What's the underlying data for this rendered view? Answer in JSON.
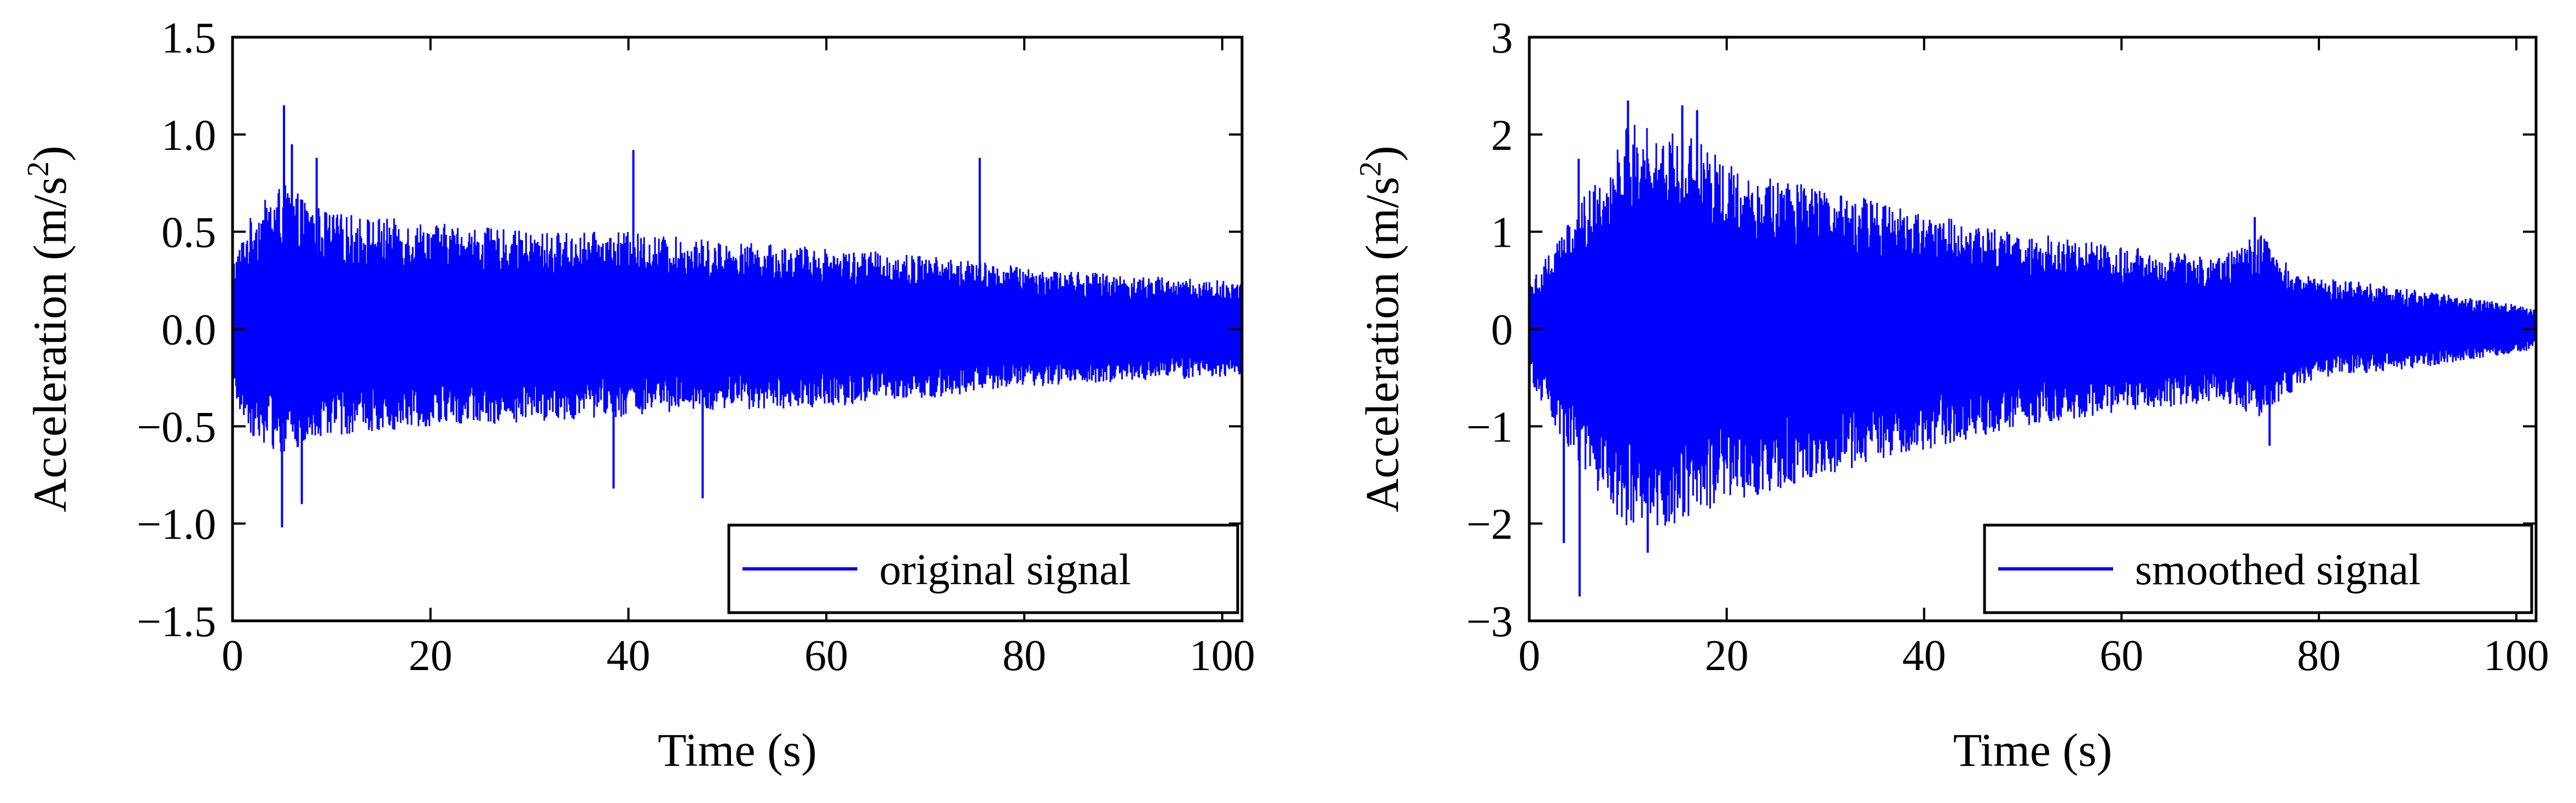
{
  "chart_data": [
    {
      "type": "line",
      "title": "",
      "xlabel": "Time (s)",
      "ylabel": "Acceleration (m/s2)",
      "ylabel_unit_exponent": "2",
      "xlim": [
        0,
        102
      ],
      "ylim": [
        -1.5,
        1.5
      ],
      "xticks": [
        0,
        20,
        40,
        60,
        80,
        100
      ],
      "xtick_labels": [
        "0",
        "20",
        "40",
        "60",
        "80",
        "100"
      ],
      "yticks": [
        -1.5,
        -1.0,
        -0.5,
        0.0,
        0.5,
        1.0,
        1.5
      ],
      "ytick_labels": [
        "−1.5",
        "−1.0",
        "−0.5",
        "0.0",
        "0.5",
        "1.0",
        "1.5"
      ],
      "legend": "bottom-right",
      "grid": false,
      "series": [
        {
          "name": "original signal",
          "color": "#0000ff",
          "envelope": {
            "t": [
              0,
              2,
              5,
              8,
              10,
              20,
              30,
              40,
              50,
              60,
              70,
              80,
              90,
              100,
              102
            ],
            "upper": [
              0.35,
              0.6,
              0.75,
              0.65,
              0.6,
              0.55,
              0.5,
              0.5,
              0.45,
              0.42,
              0.38,
              0.32,
              0.28,
              0.25,
              0.25
            ],
            "lower": [
              -0.35,
              -0.55,
              -0.65,
              -0.6,
              -0.55,
              -0.5,
              -0.48,
              -0.45,
              -0.42,
              -0.4,
              -0.36,
              -0.3,
              -0.27,
              -0.25,
              -0.25
            ]
          },
          "peaks": [
            {
              "t": 5.2,
              "a": 1.15
            },
            {
              "t": 6.0,
              "a": 0.95
            },
            {
              "t": 8.5,
              "a": 0.88
            },
            {
              "t": 40.5,
              "a": 0.92
            },
            {
              "t": 75.5,
              "a": 0.88
            },
            {
              "t": 5.0,
              "a": -1.02
            },
            {
              "t": 7.0,
              "a": -0.9
            },
            {
              "t": 38.5,
              "a": -0.82
            },
            {
              "t": 47.5,
              "a": -0.87
            }
          ]
        }
      ]
    },
    {
      "type": "line",
      "title": "",
      "xlabel": "Time (s)",
      "ylabel": "Acceleration (m/s2)",
      "ylabel_unit_exponent": "2",
      "xlim": [
        0,
        102
      ],
      "ylim": [
        -3,
        3
      ],
      "xticks": [
        0,
        20,
        40,
        60,
        80,
        100
      ],
      "xtick_labels": [
        "0",
        "20",
        "40",
        "60",
        "80",
        "100"
      ],
      "yticks": [
        -3,
        -2,
        -1,
        0,
        1,
        2,
        3
      ],
      "ytick_labels": [
        "−3",
        "−2",
        "−1",
        "0",
        "1",
        "2",
        "3"
      ],
      "legend": "bottom-right",
      "grid": false,
      "series": [
        {
          "name": "smoothed signal",
          "color": "#0000ff",
          "envelope": {
            "t": [
              0,
              2,
              5,
              8,
              10,
              15,
              20,
              30,
              40,
              50,
              60,
              70,
              74,
              78,
              80,
              90,
              100,
              102
            ],
            "upper": [
              0.5,
              0.8,
              1.3,
              1.7,
              2.1,
              2.1,
              1.7,
              1.45,
              1.2,
              1.0,
              0.85,
              0.75,
              1.0,
              0.55,
              0.55,
              0.4,
              0.25,
              0.2
            ],
            "lower": [
              -0.5,
              -0.9,
              -1.4,
              -1.9,
              -2.1,
              -2.0,
              -1.8,
              -1.5,
              -1.25,
              -1.0,
              -0.85,
              -0.75,
              -0.9,
              -0.6,
              -0.5,
              -0.4,
              -0.25,
              -0.2
            ]
          },
          "peaks": [
            {
              "t": 10.0,
              "a": 2.35
            },
            {
              "t": 15.5,
              "a": 2.3
            },
            {
              "t": 17.0,
              "a": 2.25
            },
            {
              "t": 5.0,
              "a": 1.75
            },
            {
              "t": 73.5,
              "a": 1.15
            },
            {
              "t": 5.1,
              "a": -2.75
            },
            {
              "t": 3.5,
              "a": -2.2
            },
            {
              "t": 12.0,
              "a": -2.3
            },
            {
              "t": 75.0,
              "a": -1.2
            }
          ]
        }
      ]
    }
  ]
}
